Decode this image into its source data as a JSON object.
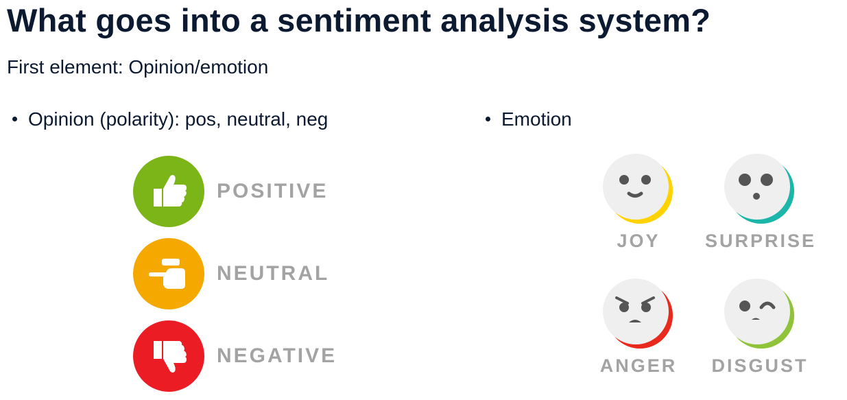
{
  "title": "What goes into a sentiment analysis system?",
  "subtitle": "First element: Opinion/emotion",
  "bullets": {
    "opinion": "Opinion (polarity): pos, neutral, neg",
    "emotion": "Emotion"
  },
  "polarity": [
    {
      "label": "POSITIVE",
      "color": "#7cb518",
      "icon": "thumbs-up-icon"
    },
    {
      "label": "NEUTRAL",
      "color": "#f5a800",
      "icon": "pointing-hand-icon"
    },
    {
      "label": "NEGATIVE",
      "color": "#ec1c24",
      "icon": "thumbs-down-icon"
    }
  ],
  "emotions": [
    {
      "label": "JOY",
      "accent": "#ffd200",
      "icon": "joy-face-icon"
    },
    {
      "label": "SURPRISE",
      "accent": "#1bb5aa",
      "icon": "surprise-face-icon"
    },
    {
      "label": "ANGER",
      "accent": "#e8291c",
      "icon": "anger-face-icon"
    },
    {
      "label": "DISGUST",
      "accent": "#8fc43a",
      "icon": "disgust-face-icon"
    }
  ]
}
